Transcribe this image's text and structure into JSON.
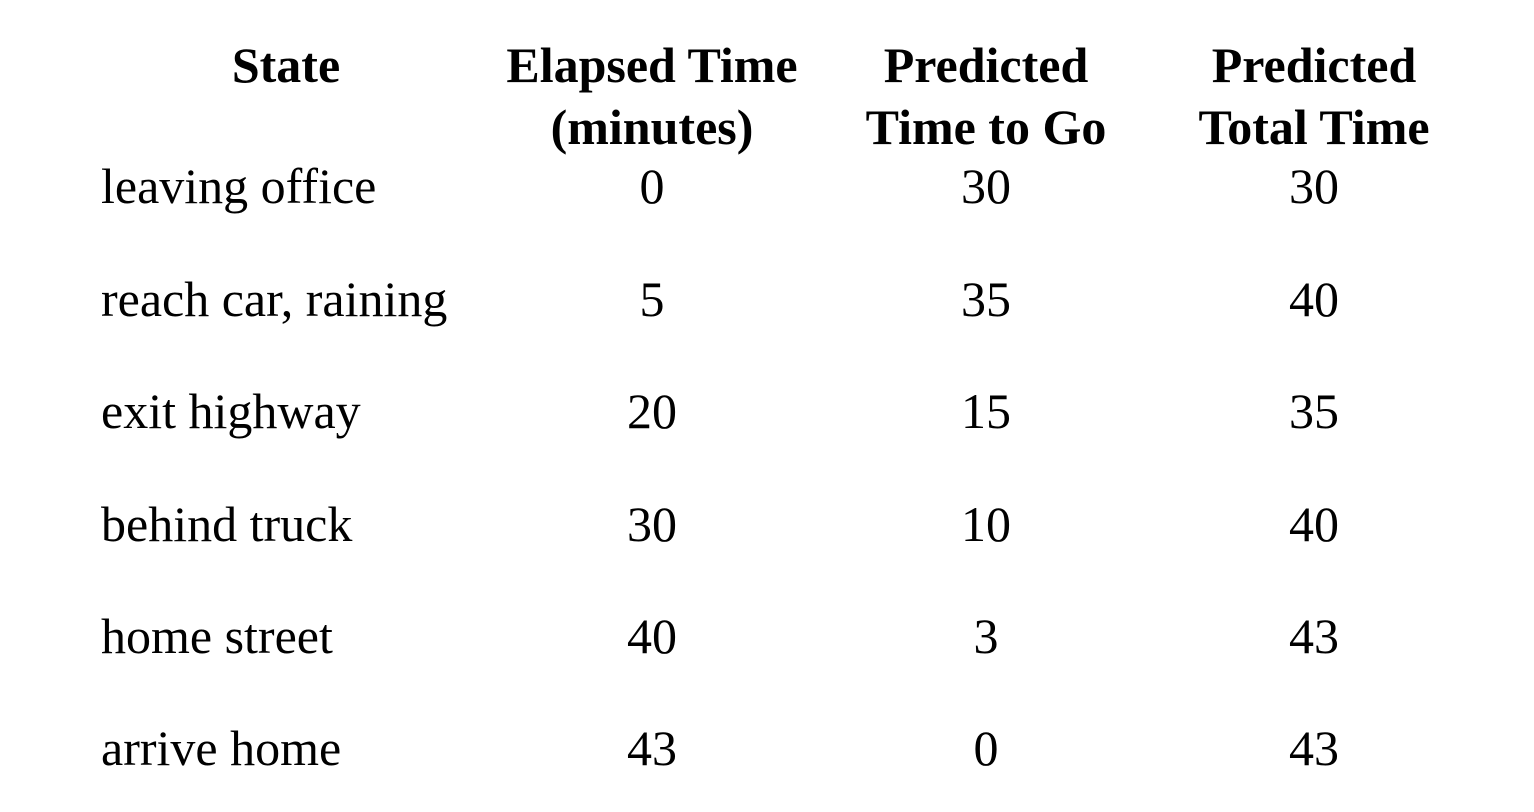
{
  "table": {
    "headers": {
      "state": [
        "State"
      ],
      "elapsed": [
        "Elapsed Time",
        "(minutes)"
      ],
      "to_go": [
        "Predicted",
        "Time to Go"
      ],
      "total": [
        "Predicted",
        "Total Time"
      ]
    },
    "rows": [
      {
        "state": "leaving office",
        "elapsed": "0",
        "to_go": "30",
        "total": "30"
      },
      {
        "state": "reach car, raining",
        "elapsed": "5",
        "to_go": "35",
        "total": "40"
      },
      {
        "state": "exit highway",
        "elapsed": "20",
        "to_go": "15",
        "total": "35"
      },
      {
        "state": "behind truck",
        "elapsed": "30",
        "to_go": "10",
        "total": "40"
      },
      {
        "state": "home street",
        "elapsed": "40",
        "to_go": "3",
        "total": "43"
      },
      {
        "state": "arrive home",
        "elapsed": "43",
        "to_go": "0",
        "total": "43"
      }
    ]
  }
}
